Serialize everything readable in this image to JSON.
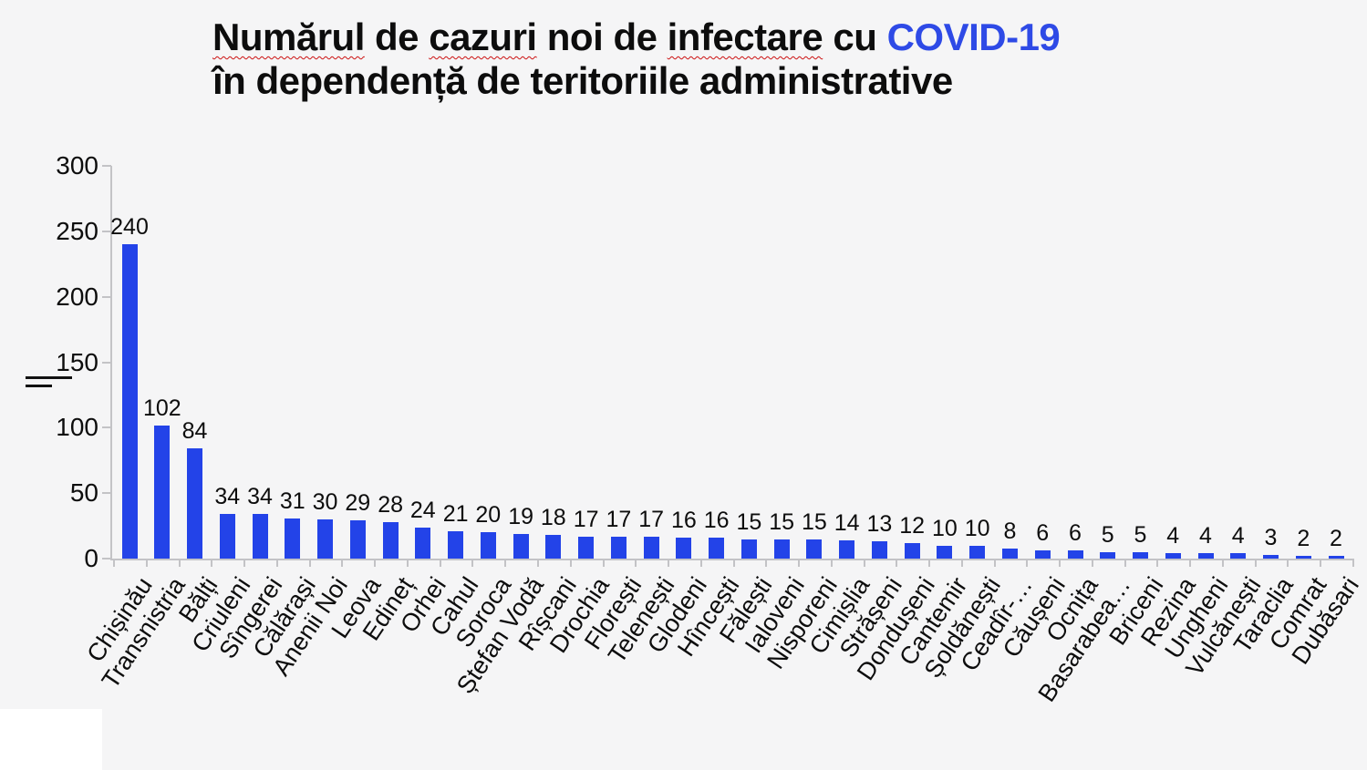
{
  "title": {
    "line1_words": [
      {
        "text": "Numărul",
        "misspelled": true
      },
      {
        "text": "de",
        "misspelled": false
      },
      {
        "text": "cazuri",
        "misspelled": true
      },
      {
        "text": "noi",
        "misspelled": false
      },
      {
        "text": "de",
        "misspelled": false
      },
      {
        "text": "infectare",
        "misspelled": true
      },
      {
        "text": "cu",
        "misspelled": false
      }
    ],
    "line1_accent": "COVID-19",
    "line2": "în dependență de teritoriile administrative",
    "accent_color": "#2e4ae6",
    "text_color": "#0d0d0d",
    "misspell_underline_color": "#cc1111"
  },
  "chart_data": {
    "type": "bar",
    "title": "Numărul de cazuri noi de infectare cu COVID-19 în dependență de teritoriile administrative",
    "categories": [
      "Chișinău",
      "Transnistria",
      "Bălți",
      "Criuleni",
      "Sîngerei",
      "Călărași",
      "Anenii Noi",
      "Leova",
      "Edineț",
      "Orhei",
      "Cahul",
      "Soroca",
      "Ștefan Vodă",
      "Rîșcani",
      "Drochia",
      "Florești",
      "Telenești",
      "Glodeni",
      "Hîncești",
      "Fălești",
      "Ialoveni",
      "Nisporeni",
      "Cimișlia",
      "Strășeni",
      "Dondușeni",
      "Cantemir",
      "Șoldănești",
      "Ceadîr-…",
      "Căușeni",
      "Ocnița",
      "Basarabea…",
      "Briceni",
      "Rezina",
      "Ungheni",
      "Vulcănești",
      "Taraclia",
      "Comrat",
      "Dubăsari"
    ],
    "values": [
      240,
      102,
      84,
      34,
      34,
      31,
      30,
      29,
      28,
      24,
      21,
      20,
      19,
      18,
      17,
      17,
      17,
      16,
      16,
      15,
      15,
      15,
      14,
      13,
      12,
      10,
      10,
      8,
      6,
      6,
      5,
      5,
      4,
      4,
      4,
      3,
      2,
      2
    ],
    "xlabel": "",
    "ylabel": "",
    "ylim": [
      0,
      300
    ],
    "yticks": [
      0,
      50,
      100,
      150,
      200,
      250,
      300
    ],
    "grid": false,
    "legend": "none",
    "data_labels": true,
    "x_label_rotation_deg": -56,
    "bar_color": "#2343e8",
    "axis_color": "#c3c3c6"
  }
}
